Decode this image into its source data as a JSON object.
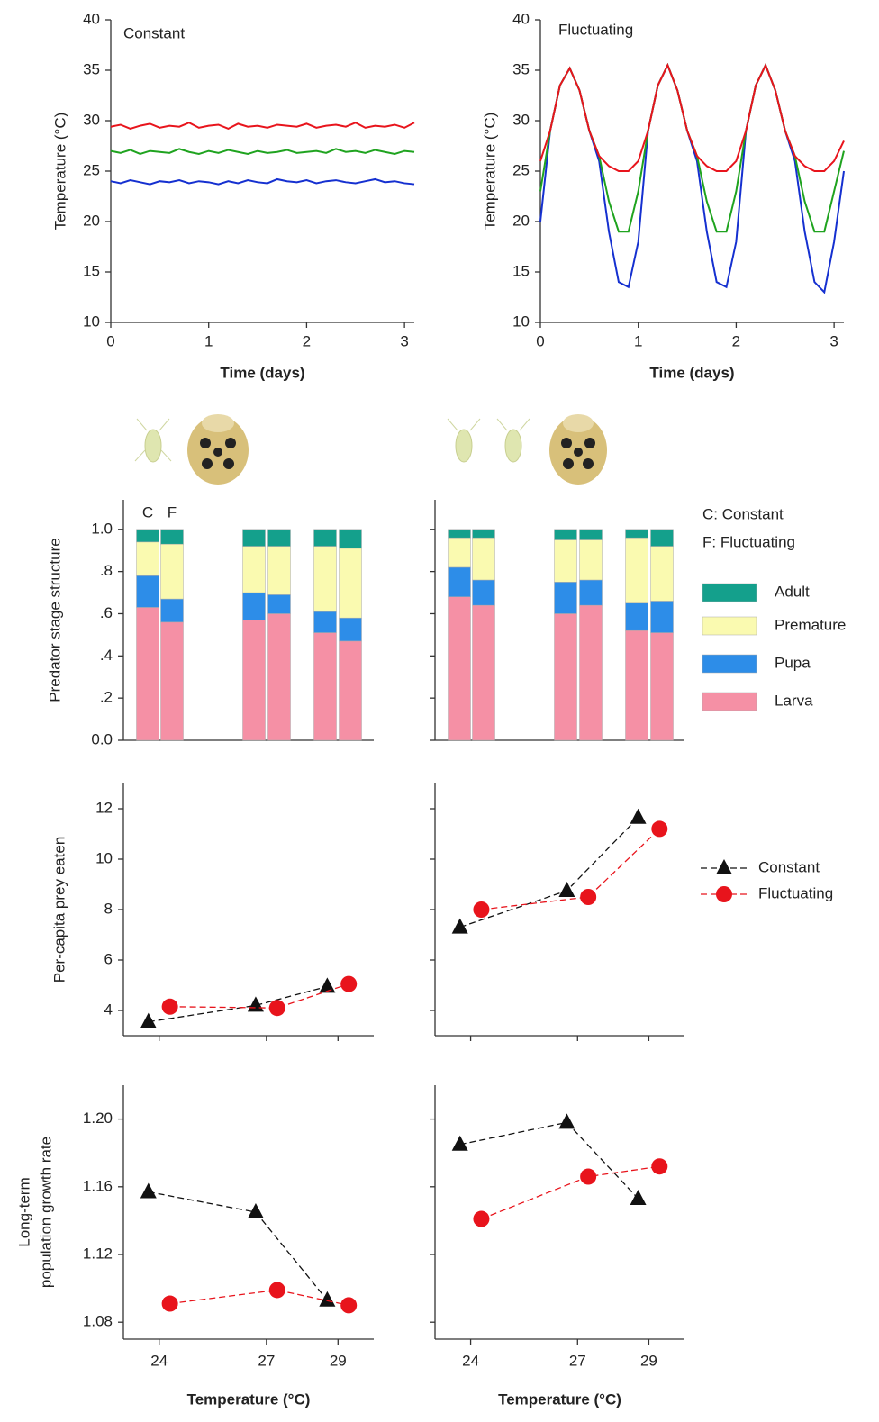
{
  "chart_data": [
    {
      "type": "line",
      "title": "Constant",
      "xlabel": "Time (days)",
      "ylabel": "Temperature (°C)",
      "x": [
        0,
        0.1,
        0.2,
        0.3,
        0.4,
        0.5,
        0.6,
        0.7,
        0.8,
        0.9,
        1,
        1.1,
        1.2,
        1.3,
        1.4,
        1.5,
        1.6,
        1.7,
        1.8,
        1.9,
        2,
        2.1,
        2.2,
        2.3,
        2.4,
        2.5,
        2.6,
        2.7,
        2.8,
        2.9,
        3,
        3.1
      ],
      "xlim": [
        0,
        3.1
      ],
      "xticks": [
        0,
        1,
        2,
        3
      ],
      "ylim": [
        10,
        40
      ],
      "yticks": [
        10,
        15,
        20,
        25,
        30,
        35,
        40
      ],
      "series": [
        {
          "color": "#1530d0",
          "values": [
            24.0,
            23.8,
            24.1,
            23.9,
            23.7,
            24.0,
            23.9,
            24.1,
            23.8,
            24.0,
            23.9,
            23.7,
            24.0,
            23.8,
            24.1,
            23.9,
            23.8,
            24.2,
            24.0,
            23.9,
            24.1,
            23.8,
            24.0,
            24.1,
            23.9,
            23.8,
            24.0,
            24.2,
            23.9,
            24.0,
            23.8,
            23.7
          ]
        },
        {
          "color": "#1fa31f",
          "values": [
            27.0,
            26.8,
            27.1,
            26.7,
            27.0,
            26.9,
            26.8,
            27.2,
            26.9,
            26.7,
            27.0,
            26.8,
            27.1,
            26.9,
            26.7,
            27.0,
            26.8,
            26.9,
            27.1,
            26.8,
            26.9,
            27.0,
            26.8,
            27.2,
            26.9,
            27.0,
            26.8,
            27.1,
            26.9,
            26.7,
            27.0,
            26.9
          ]
        },
        {
          "color": "#e8141c",
          "values": [
            29.4,
            29.6,
            29.2,
            29.5,
            29.7,
            29.3,
            29.5,
            29.4,
            29.8,
            29.3,
            29.5,
            29.6,
            29.2,
            29.7,
            29.4,
            29.5,
            29.3,
            29.6,
            29.5,
            29.4,
            29.7,
            29.3,
            29.5,
            29.6,
            29.4,
            29.8,
            29.3,
            29.5,
            29.4,
            29.6,
            29.3,
            29.8
          ]
        }
      ]
    },
    {
      "type": "line",
      "title": "Fluctuating",
      "xlabel": "Time (days)",
      "ylabel": "Temperature (°C)",
      "x": [
        0,
        0.1,
        0.2,
        0.3,
        0.4,
        0.5,
        0.6,
        0.7,
        0.8,
        0.9,
        1,
        1.1,
        1.2,
        1.3,
        1.4,
        1.5,
        1.6,
        1.7,
        1.8,
        1.9,
        2,
        2.1,
        2.2,
        2.3,
        2.4,
        2.5,
        2.6,
        2.7,
        2.8,
        2.9,
        3,
        3.1
      ],
      "xlim": [
        0,
        3.1
      ],
      "xticks": [
        0,
        1,
        2,
        3
      ],
      "ylim": [
        10,
        40
      ],
      "yticks": [
        10,
        15,
        20,
        25,
        30,
        35,
        40
      ],
      "series": [
        {
          "color": "#1530d0",
          "values": [
            20,
            29,
            33.5,
            35.2,
            33,
            29,
            26,
            19,
            14,
            13.5,
            18,
            29,
            33.5,
            35.5,
            33,
            29,
            26,
            19,
            14,
            13.5,
            18,
            29,
            33.5,
            35.5,
            33,
            29,
            26,
            19,
            14,
            13,
            18,
            25
          ]
        },
        {
          "color": "#1fa31f",
          "values": [
            23,
            29,
            33.5,
            35.2,
            33,
            29,
            26.5,
            22,
            19,
            19,
            23,
            29,
            33.5,
            35.5,
            33,
            29,
            26.5,
            22,
            19,
            19,
            23,
            29,
            33.5,
            35.5,
            33,
            29,
            26.5,
            22,
            19,
            19,
            23,
            27
          ]
        },
        {
          "color": "#e8141c",
          "values": [
            26,
            29,
            33.5,
            35.2,
            33,
            29,
            26.5,
            25.5,
            25,
            25,
            26,
            29,
            33.5,
            35.5,
            33,
            29,
            26.5,
            25.5,
            25,
            25,
            26,
            29,
            33.5,
            35.5,
            33,
            29,
            26.5,
            25.5,
            25,
            25,
            26,
            28
          ]
        }
      ]
    },
    {
      "type": "stacked_bar",
      "ylabel": "Predator stage structure",
      "categories": [
        "C",
        "F",
        null,
        null,
        null,
        null
      ],
      "ylim": [
        0,
        1.14
      ],
      "yticks": [
        {
          "value": 0,
          "label": "0.0"
        },
        {
          "value": 0.2,
          "label": ".2"
        },
        {
          "value": 0.4,
          "label": ".4"
        },
        {
          "value": 0.6,
          "label": ".6"
        },
        {
          "value": 0.8,
          "label": ".8"
        },
        {
          "value": 1,
          "label": "1.0"
        }
      ],
      "series": [
        {
          "color": "#f590a5",
          "values": [
            0.63,
            0.56,
            0.57,
            0.6,
            0.51,
            0.47
          ]
        },
        {
          "color": "#2d8de8",
          "values": [
            0.15,
            0.11,
            0.13,
            0.09,
            0.1,
            0.11
          ]
        },
        {
          "color": "#fafab0",
          "values": [
            0.16,
            0.26,
            0.22,
            0.23,
            0.31,
            0.33
          ]
        },
        {
          "color": "#14a08c",
          "values": [
            0.06,
            0.07,
            0.08,
            0.08,
            0.08,
            0.09
          ]
        }
      ]
    },
    {
      "type": "stacked_bar",
      "categories": [
        null,
        null,
        null,
        null,
        null,
        null
      ],
      "ylim": [
        0,
        1.14
      ],
      "yticks": [
        0,
        0.2,
        0.4,
        0.6,
        0.8,
        1
      ],
      "ytick_labels": false,
      "legend": true,
      "annotations": [
        "C: Constant",
        "F: Fluctuating"
      ],
      "series": [
        {
          "name": "Larva",
          "color": "#f590a5",
          "values": [
            0.68,
            0.64,
            0.6,
            0.64,
            0.52,
            0.51
          ]
        },
        {
          "name": "Pupa",
          "color": "#2d8de8",
          "values": [
            0.14,
            0.12,
            0.15,
            0.12,
            0.13,
            0.15
          ]
        },
        {
          "name": "Premature",
          "color": "#fafab0",
          "values": [
            0.14,
            0.2,
            0.2,
            0.19,
            0.31,
            0.26
          ]
        },
        {
          "name": "Adult",
          "color": "#14a08c",
          "values": [
            0.04,
            0.04,
            0.05,
            0.05,
            0.04,
            0.08
          ]
        }
      ]
    },
    {
      "type": "line",
      "ylabel": "Per-capita prey eaten",
      "xlim": [
        23,
        30
      ],
      "xticks": [
        24,
        27,
        29
      ],
      "xtick_labels": false,
      "ylim": [
        3,
        13
      ],
      "yticks": [
        4,
        6,
        8,
        10,
        12
      ],
      "series": [
        {
          "color": "#111111",
          "marker": "triangle",
          "x": [
            23.7,
            26.7,
            28.7
          ],
          "values": [
            3.55,
            4.2,
            4.95
          ]
        },
        {
          "color": "#e8141c",
          "marker": "circle",
          "x": [
            24.3,
            27.3,
            29.3
          ],
          "values": [
            4.15,
            4.1,
            5.05
          ]
        }
      ]
    },
    {
      "type": "line",
      "xlim": [
        23,
        30
      ],
      "xticks": [
        24,
        27,
        29
      ],
      "xtick_labels": false,
      "ylim": [
        3,
        13
      ],
      "yticks": [
        4,
        6,
        8,
        10,
        12
      ],
      "ytick_labels": false,
      "legend": true,
      "series": [
        {
          "name": "Constant",
          "color": "#111111",
          "marker": "triangle",
          "x": [
            23.7,
            26.7,
            28.7
          ],
          "values": [
            7.3,
            8.75,
            11.65
          ]
        },
        {
          "name": "Fluctuating",
          "color": "#e8141c",
          "marker": "circle",
          "x": [
            24.3,
            27.3,
            29.3
          ],
          "values": [
            8.0,
            8.5,
            11.2
          ]
        }
      ]
    },
    {
      "type": "line",
      "ylabel": [
        "Long-term",
        "population growth rate"
      ],
      "xlabel": "Temperature (°C)",
      "xlim": [
        23,
        30
      ],
      "xticks": [
        24,
        27,
        29
      ],
      "ylim": [
        1.07,
        1.22
      ],
      "yticks": [
        1.08,
        1.12,
        1.16,
        {
          "value": 1.2,
          "label": "1.20"
        }
      ],
      "series": [
        {
          "color": "#111111",
          "marker": "triangle",
          "x": [
            23.7,
            26.7,
            28.7
          ],
          "values": [
            1.157,
            1.145,
            1.093
          ]
        },
        {
          "color": "#e8141c",
          "marker": "circle",
          "x": [
            24.3,
            27.3,
            29.3
          ],
          "values": [
            1.091,
            1.099,
            1.09
          ]
        }
      ]
    },
    {
      "type": "line",
      "xlabel": "Temperature (°C)",
      "xlim": [
        23,
        30
      ],
      "xticks": [
        24,
        27,
        29
      ],
      "ylim": [
        1.07,
        1.22
      ],
      "yticks": [
        1.08,
        1.12,
        1.16,
        1.2
      ],
      "ytick_labels": false,
      "series": [
        {
          "color": "#111111",
          "marker": "triangle",
          "x": [
            23.7,
            26.7,
            28.7
          ],
          "values": [
            1.185,
            1.198,
            1.153
          ]
        },
        {
          "color": "#e8141c",
          "marker": "circle",
          "x": [
            24.3,
            27.3,
            29.3
          ],
          "values": [
            1.141,
            1.166,
            1.172
          ]
        }
      ]
    }
  ]
}
